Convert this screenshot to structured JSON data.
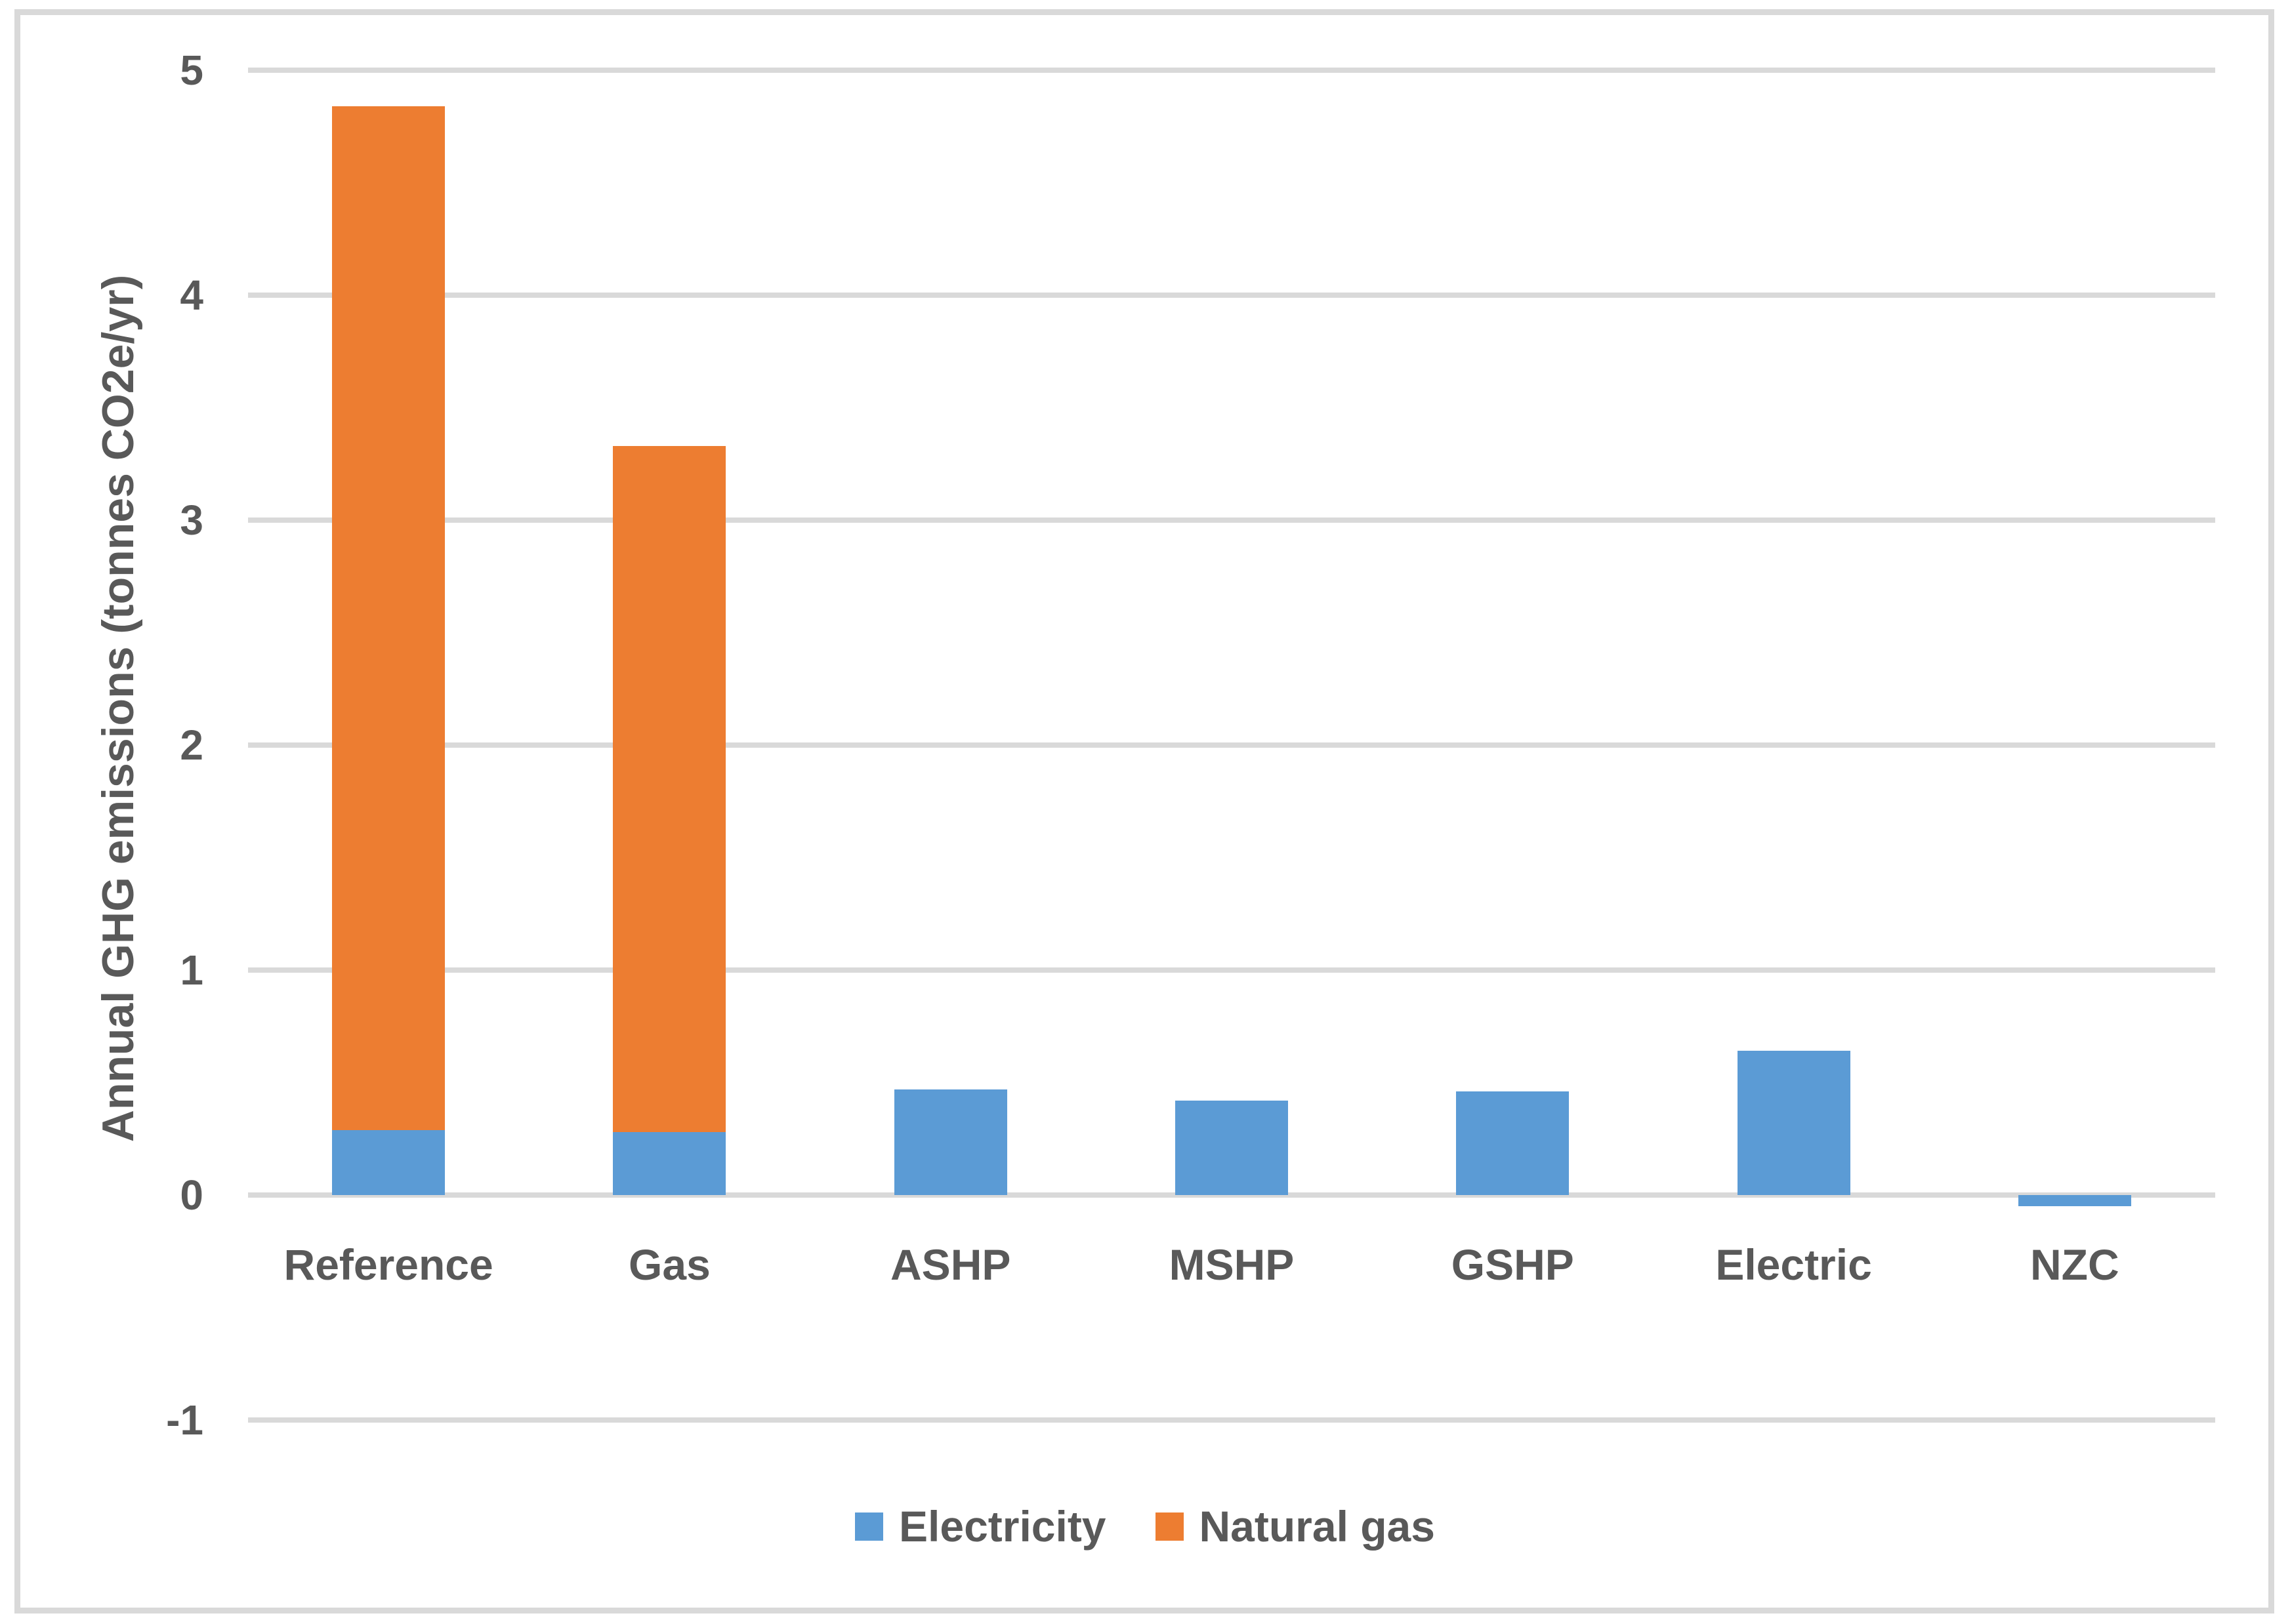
{
  "chart_data": {
    "type": "bar",
    "stacked": true,
    "title": "",
    "xlabel": "",
    "ylabel": "Annual GHG emissions (tonnes CO2e/yr)",
    "categories": [
      "Reference",
      "Gas",
      "ASHP",
      "MSHP",
      "GSHP",
      "Electric",
      "NZC"
    ],
    "series": [
      {
        "name": "Electricity",
        "color": "#5B9BD5",
        "values": [
          0.29,
          0.28,
          0.47,
          0.42,
          0.46,
          0.64,
          -0.05
        ]
      },
      {
        "name": "Natural gas",
        "color": "#ED7D31",
        "values": [
          4.55,
          3.05,
          0,
          0,
          0,
          0,
          0
        ]
      }
    ],
    "totals": [
      4.84,
      3.33,
      0.47,
      0.42,
      0.46,
      0.64,
      -0.05
    ],
    "ylim": [
      -1,
      5
    ],
    "yticks": [
      5,
      4,
      3,
      2,
      1,
      0,
      -1
    ],
    "grid": true,
    "legend_position": "bottom"
  },
  "colors": {
    "axis_text": "#595959",
    "gridline": "#D9D9D9",
    "frame_border": "#D9D9D9",
    "background": "#FFFFFF"
  }
}
